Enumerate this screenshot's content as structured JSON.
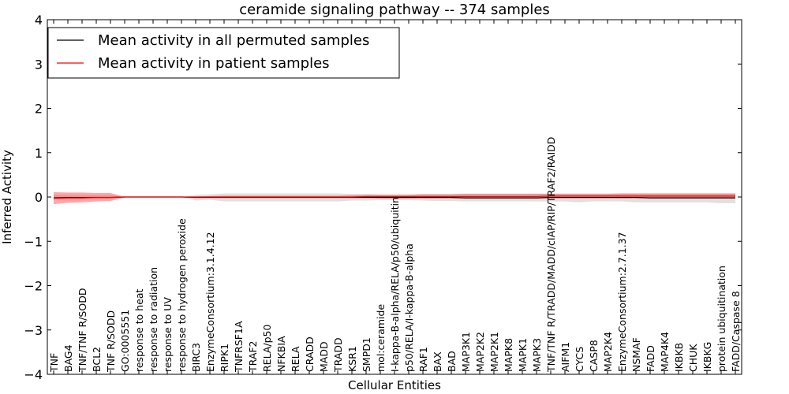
{
  "chart_data": {
    "type": "line",
    "title": "ceramide signaling pathway -- 374 samples",
    "xlabel": "Cellular Entities",
    "ylabel": "Inferred Activity",
    "ylim": [
      -4,
      4
    ],
    "yticks": [
      4,
      3,
      2,
      1,
      0,
      -1,
      -2,
      -3,
      -4
    ],
    "ytick_labels": [
      "4",
      "3",
      "2",
      "1",
      "0",
      "−1",
      "−2",
      "−3",
      "−4"
    ],
    "legend_position": "top-left",
    "categories": [
      "TNF",
      "BAG4",
      "TNF/TNF R/SODD",
      "BCL2",
      "TNF R/SODD",
      "GO:0005551",
      "response to heat",
      "response to radiation",
      "response to UV",
      "response to hydrogen peroxide",
      "BIRC3",
      "EnzymeConsortium:3.1.4.12",
      "RIPK1",
      "TNFRSF1A",
      "TRAF2",
      "RELA/p50",
      "NFKBIA",
      "RELA",
      "CRADD",
      "MADD",
      "TRADD",
      "KSR1",
      "SMPD1",
      "mol:ceramide",
      "I-kappa-B-alpha/RELA/p50/ubiquitin",
      "p50/RELA/I-kappa-B-alpha",
      "RAF1",
      "BAX",
      "BAD",
      "MAP3K1",
      "MAP2K2",
      "MAP2K1",
      "MAPK8",
      "MAPK1",
      "MAPK3",
      "TNF/TNF R/TRADD/MADD/cIAP/RIP/TRAF2/RAIDD",
      "AIFM1",
      "CYCS",
      "CASP8",
      "MAP2K4",
      "EnzymeConsortium:2.7.1.37",
      "NSMAF",
      "FADD",
      "MAP4K4",
      "IKBKB",
      "CHUK",
      "IKBKG",
      "protein ubiquitination",
      "FADD/Caspase 8"
    ],
    "series": [
      {
        "name": "Mean activity in all permuted samples",
        "color": "#000000",
        "values": [
          -0.02,
          -0.01,
          -0.01,
          -0.01,
          -0.01,
          0,
          0,
          0,
          0,
          0,
          -0.01,
          -0.01,
          -0.01,
          -0.01,
          -0.01,
          -0.01,
          -0.01,
          -0.01,
          -0.01,
          -0.01,
          -0.01,
          -0.01,
          -0.01,
          -0.01,
          -0.01,
          -0.01,
          -0.01,
          -0.01,
          -0.01,
          -0.02,
          -0.02,
          -0.02,
          -0.02,
          -0.02,
          -0.02,
          -0.01,
          -0.01,
          -0.01,
          -0.01,
          -0.01,
          -0.01,
          -0.01,
          -0.02,
          -0.02,
          -0.02,
          -0.02,
          -0.02,
          -0.02,
          -0.02
        ],
        "band_lower": [
          -0.05,
          -0.04,
          -0.04,
          -0.04,
          -0.04,
          0,
          0,
          0,
          0,
          0,
          -0.08,
          -0.06,
          -0.1,
          -0.1,
          -0.1,
          -0.1,
          -0.1,
          -0.1,
          -0.1,
          -0.1,
          -0.1,
          -0.08,
          -0.08,
          -0.07,
          -0.07,
          -0.07,
          -0.08,
          -0.09,
          -0.09,
          -0.1,
          -0.1,
          -0.1,
          -0.1,
          -0.1,
          -0.1,
          -0.1,
          -0.1,
          -0.12,
          -0.1,
          -0.1,
          -0.1,
          -0.12,
          -0.12,
          -0.12,
          -0.12,
          -0.12,
          -0.12,
          -0.14,
          -0.14
        ],
        "band_upper": [
          0.05,
          0.04,
          0.04,
          0.04,
          0.04,
          0,
          0,
          0,
          0,
          0,
          0.05,
          0.06,
          0.08,
          0.08,
          0.08,
          0.08,
          0.08,
          0.08,
          0.08,
          0.08,
          0.08,
          0.07,
          0.07,
          0.06,
          0.06,
          0.06,
          0.07,
          0.07,
          0.07,
          0.08,
          0.08,
          0.08,
          0.08,
          0.08,
          0.08,
          0.08,
          0.08,
          0.08,
          0.08,
          0.08,
          0.08,
          0.08,
          0.08,
          0.08,
          0.08,
          0.08,
          0.08,
          0.08,
          0.08
        ]
      },
      {
        "name": "Mean activity in patient samples",
        "color": "#ff0000",
        "values": [
          -0.03,
          -0.02,
          -0.02,
          -0.01,
          -0.01,
          0,
          0,
          0,
          0,
          0,
          0,
          0,
          0,
          0,
          0,
          0,
          0,
          0,
          0,
          0,
          0,
          0,
          0.01,
          0.01,
          0.01,
          0.01,
          0.01,
          0.01,
          0.01,
          0.01,
          0.01,
          0.01,
          0.01,
          0.01,
          0.01,
          0.02,
          0.02,
          0.02,
          0.02,
          0.02,
          0.02,
          0.02,
          0.02,
          0.02,
          0.02,
          0.02,
          0.02,
          0.02,
          0.02
        ],
        "band_lower": [
          -0.16,
          -0.13,
          -0.12,
          -0.1,
          -0.09,
          -0.01,
          0,
          0,
          0,
          0,
          -0.01,
          -0.01,
          -0.01,
          -0.01,
          -0.01,
          -0.01,
          -0.01,
          -0.01,
          -0.01,
          -0.01,
          -0.01,
          -0.02,
          -0.02,
          -0.03,
          -0.03,
          -0.03,
          -0.03,
          -0.03,
          -0.03,
          -0.03,
          -0.03,
          -0.03,
          -0.03,
          -0.03,
          -0.03,
          -0.03,
          -0.03,
          -0.03,
          -0.03,
          -0.03,
          -0.03,
          -0.03,
          -0.03,
          -0.03,
          -0.03,
          -0.03,
          -0.03,
          -0.03,
          -0.03
        ],
        "band_upper": [
          0.11,
          0.1,
          0.1,
          0.09,
          0.09,
          0.01,
          0,
          0,
          0,
          0,
          0.01,
          0.02,
          0.03,
          0.03,
          0.03,
          0.03,
          0.03,
          0.03,
          0.03,
          0.03,
          0.03,
          0.04,
          0.05,
          0.05,
          0.05,
          0.05,
          0.06,
          0.06,
          0.06,
          0.07,
          0.07,
          0.07,
          0.07,
          0.07,
          0.07,
          0.07,
          0.07,
          0.07,
          0.07,
          0.07,
          0.08,
          0.08,
          0.08,
          0.08,
          0.08,
          0.08,
          0.08,
          0.08,
          0.08
        ]
      }
    ]
  },
  "colors": {
    "permuted_band": "#bbbbbb",
    "patient_band": "#ff0000"
  }
}
